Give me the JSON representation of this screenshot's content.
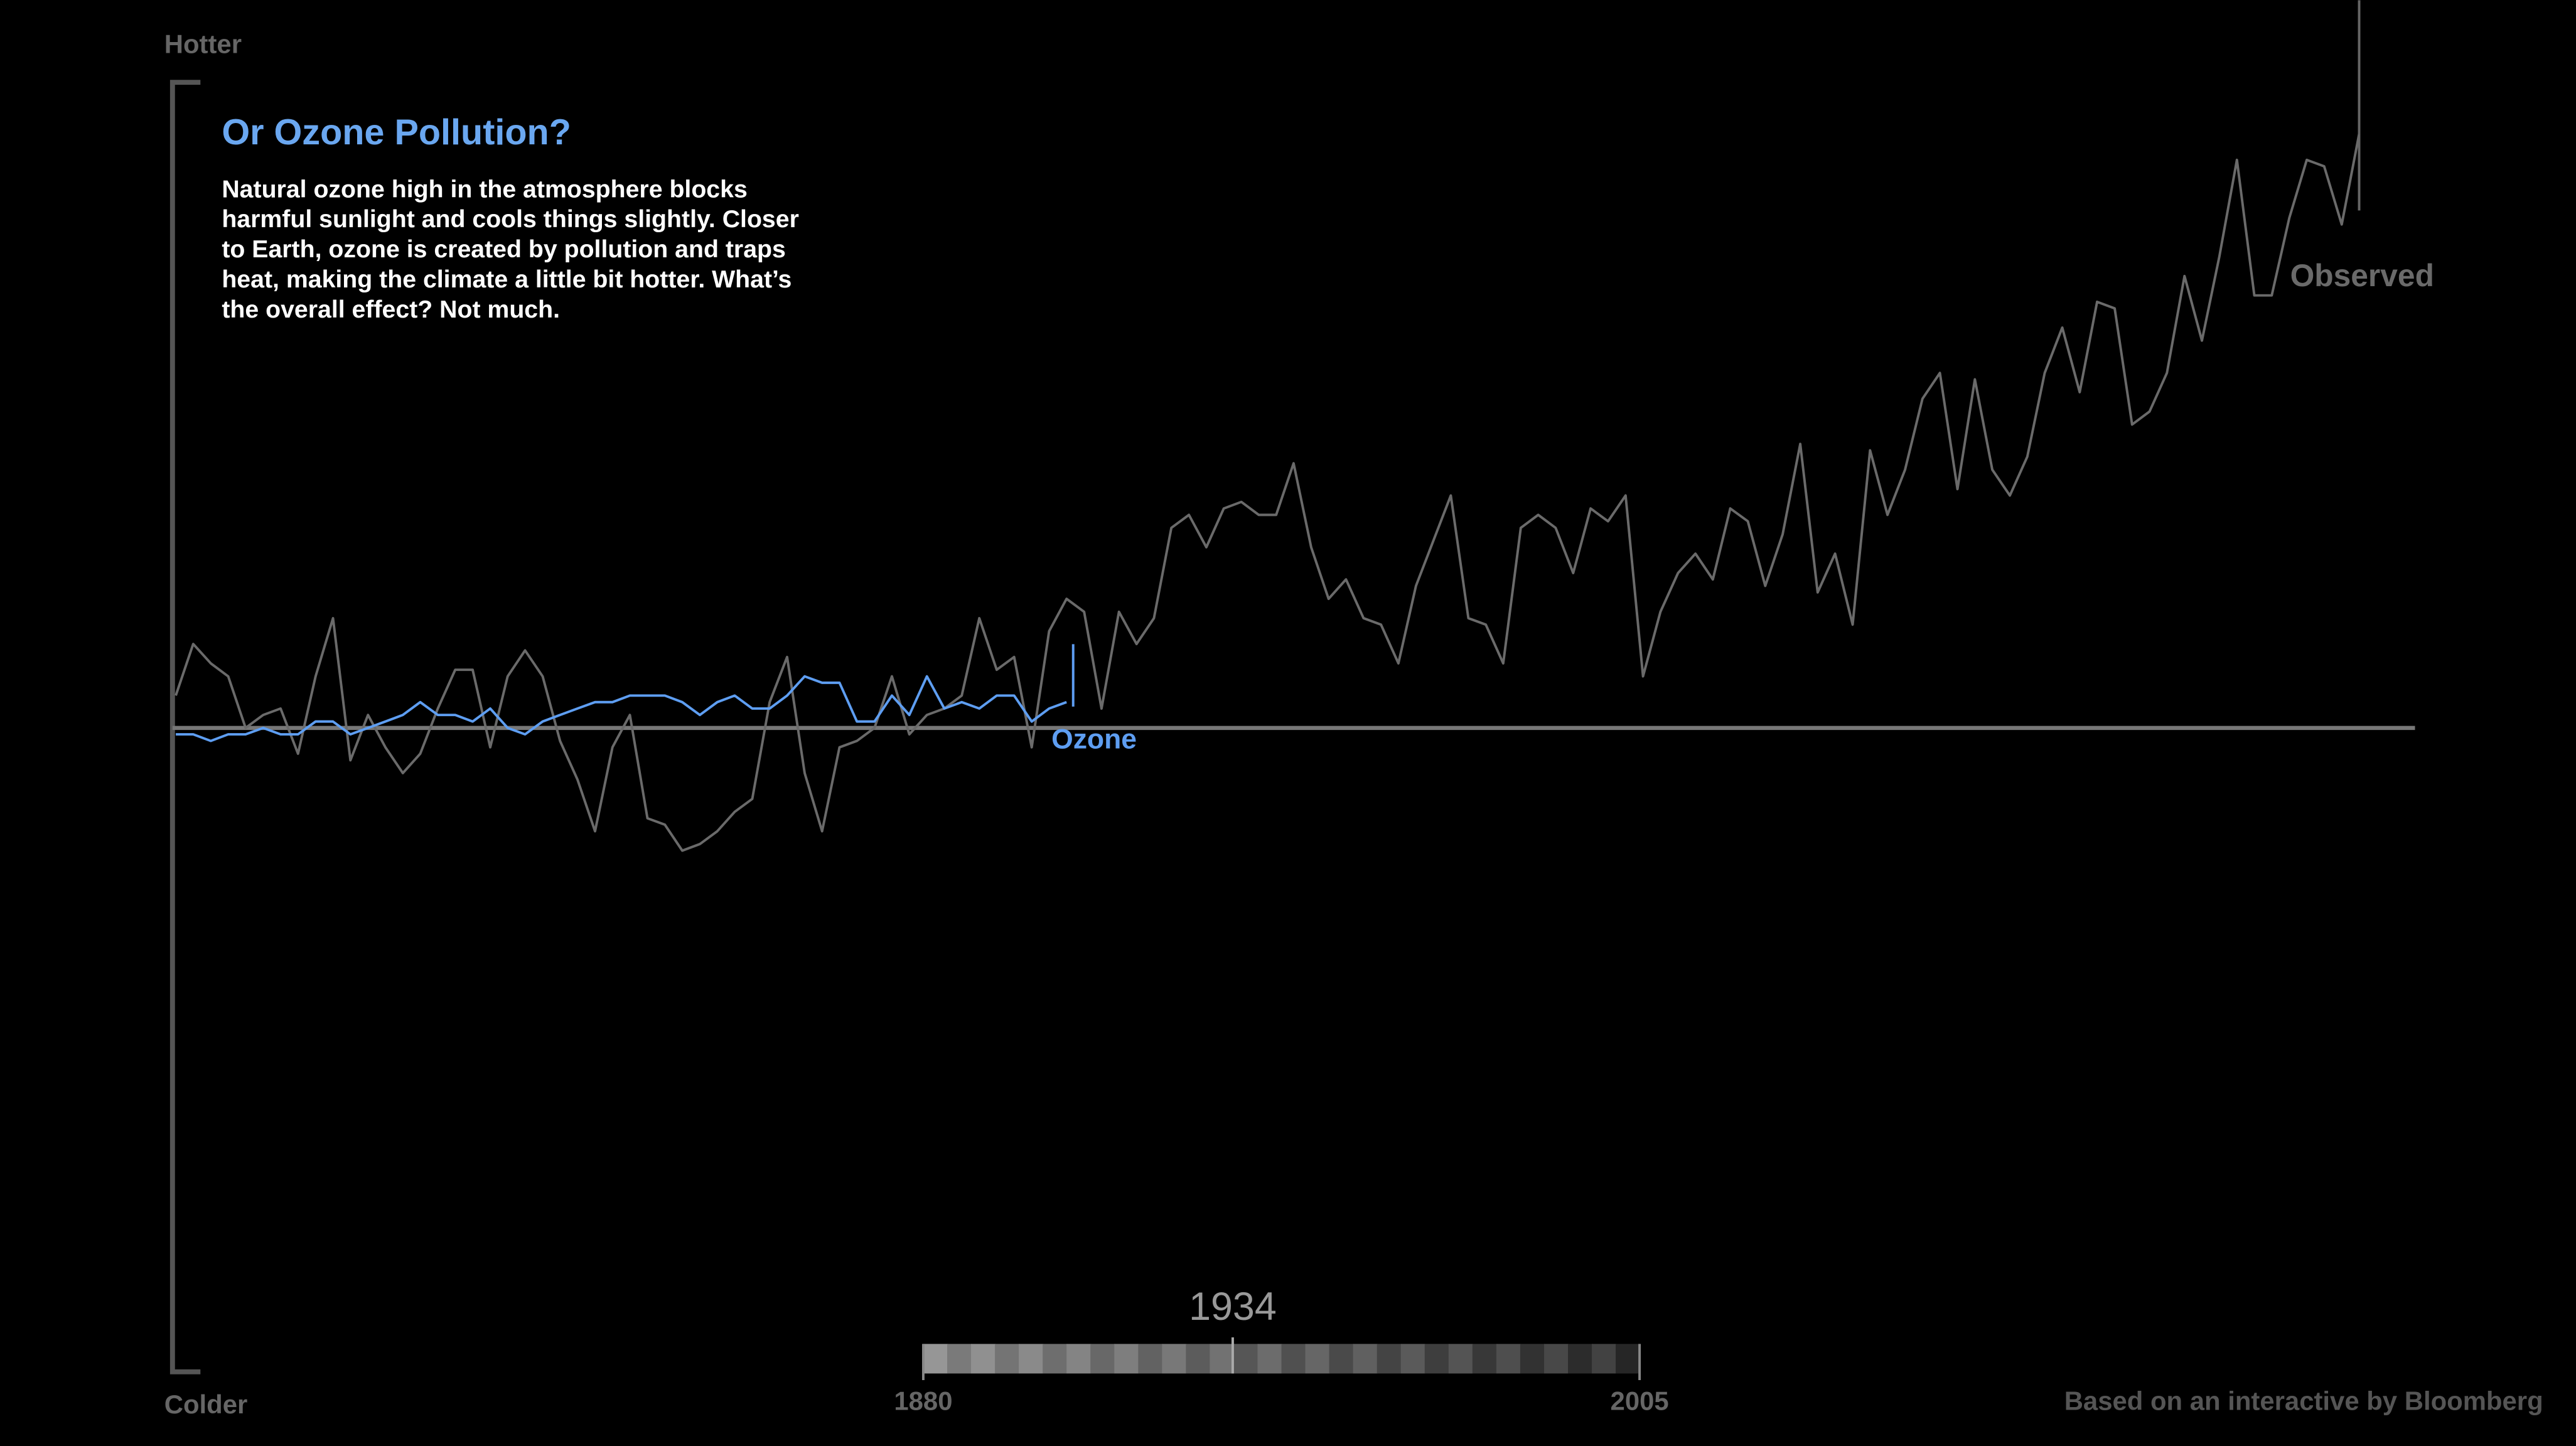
{
  "chart_data": {
    "type": "line",
    "title": "Or Ozone Pollution?",
    "body_lines": [
      "Natural ozone high in the atmosphere blocks",
      "harmful sunlight and cools things slightly.  Closer",
      "to Earth, ozone is created by pollution and traps",
      "heat, making the climate a little bit hotter.  What’s",
      "the overall effect?  Not much."
    ],
    "y_top_label": "Hotter",
    "y_bottom_label": "Colder",
    "ylim": [
      -100,
      100
    ],
    "xlim": [
      1880,
      2005
    ],
    "x": [
      1880,
      1881,
      1882,
      1883,
      1884,
      1885,
      1886,
      1887,
      1888,
      1889,
      1890,
      1891,
      1892,
      1893,
      1894,
      1895,
      1896,
      1897,
      1898,
      1899,
      1900,
      1901,
      1902,
      1903,
      1904,
      1905,
      1906,
      1907,
      1908,
      1909,
      1910,
      1911,
      1912,
      1913,
      1914,
      1915,
      1916,
      1917,
      1918,
      1919,
      1920,
      1921,
      1922,
      1923,
      1924,
      1925,
      1926,
      1927,
      1928,
      1929,
      1930,
      1931,
      1932,
      1933,
      1934,
      1935,
      1936,
      1937,
      1938,
      1939,
      1940,
      1941,
      1942,
      1943,
      1944,
      1945,
      1946,
      1947,
      1948,
      1949,
      1950,
      1951,
      1952,
      1953,
      1954,
      1955,
      1956,
      1957,
      1958,
      1959,
      1960,
      1961,
      1962,
      1963,
      1964,
      1965,
      1966,
      1967,
      1968,
      1969,
      1970,
      1971,
      1972,
      1973,
      1974,
      1975,
      1976,
      1977,
      1978,
      1979,
      1980,
      1981,
      1982,
      1983,
      1984,
      1985,
      1986,
      1987,
      1988,
      1989,
      1990,
      1991,
      1992,
      1993,
      1994,
      1995,
      1996,
      1997,
      1998,
      1999,
      2000,
      2001,
      2002,
      2003,
      2004,
      2005
    ],
    "series": [
      {
        "name": "Observed",
        "color": "#6a6a6a",
        "values": [
          5,
          13,
          10,
          8,
          0,
          2,
          3,
          -4,
          8,
          17,
          -5,
          2,
          -3,
          -7,
          -4,
          3,
          9,
          9,
          -3,
          8,
          12,
          8,
          -2,
          -8,
          -16,
          -3,
          2,
          -14,
          -15,
          -19,
          -18,
          -16,
          -13,
          -11,
          4,
          11,
          -7,
          -16,
          -3,
          -2,
          0,
          8,
          -1,
          2,
          3,
          5,
          17,
          9,
          11,
          -3,
          15,
          20,
          18,
          3,
          18,
          13,
          17,
          31,
          33,
          28,
          34,
          35,
          33,
          33,
          41,
          28,
          20,
          23,
          17,
          16,
          10,
          22,
          29,
          36,
          17,
          16,
          10,
          31,
          33,
          31,
          24,
          34,
          32,
          36,
          8,
          18,
          24,
          27,
          23,
          34,
          32,
          22,
          30,
          44,
          21,
          27,
          16,
          43,
          33,
          40,
          51,
          55,
          37,
          54,
          40,
          36,
          42,
          55,
          62,
          52,
          66,
          65,
          47,
          49,
          55,
          70,
          60,
          73,
          88,
          67,
          67,
          79,
          88,
          87,
          78,
          92
        ]
      },
      {
        "name": "Ozone",
        "color": "#5e9ef2",
        "values": [
          -1,
          -1,
          -2,
          -1,
          -1,
          0,
          -1,
          -1,
          1,
          1,
          -1,
          0,
          1,
          2,
          4,
          2,
          2,
          1,
          3,
          0,
          -1,
          1,
          2,
          3,
          4,
          4,
          5,
          5,
          5,
          4,
          2,
          4,
          5,
          3,
          3,
          5,
          8,
          7,
          7,
          1,
          1,
          5,
          2,
          8,
          3,
          4,
          3,
          5,
          5,
          1,
          3,
          4,
          null,
          null,
          null,
          null,
          null,
          null,
          null,
          null,
          null,
          null,
          null,
          null,
          null,
          null,
          null,
          null,
          null,
          null,
          null,
          null,
          null,
          null,
          null,
          null,
          null,
          null,
          null,
          null,
          null,
          null,
          null,
          null,
          null,
          null,
          null,
          null,
          null,
          null,
          null,
          null,
          null,
          null,
          null,
          null,
          null,
          null,
          null,
          null,
          null,
          null,
          null,
          null,
          null,
          null,
          null,
          null,
          null,
          null,
          null,
          null,
          null,
          null,
          null,
          null,
          null,
          null,
          null,
          null,
          null,
          null,
          null,
          null,
          null,
          null
        ]
      }
    ],
    "slider": {
      "min": 1880,
      "max": 2005,
      "current": 1934
    },
    "credit": "Based on an interactive by Bloomberg"
  }
}
